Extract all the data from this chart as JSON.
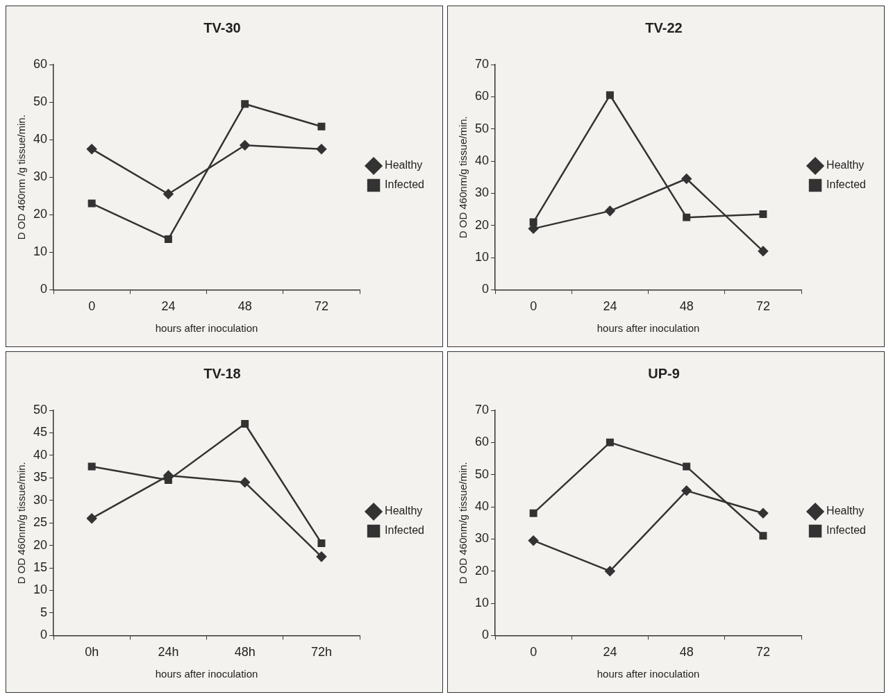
{
  "chart_data": [
    {
      "type": "line",
      "title": "TV-30",
      "xlabel": "hours after inoculation",
      "ylabel": "D OD 460nm /g tissue/min.",
      "categories": [
        "0",
        "24",
        "48",
        "72"
      ],
      "ylim": [
        0,
        60
      ],
      "yticks": [
        0,
        10,
        20,
        30,
        40,
        50,
        60
      ],
      "grid": false,
      "legend": "right",
      "series": [
        {
          "name": "Healthy",
          "color": "#333333",
          "marker": "diamond",
          "values": [
            37.5,
            25.5,
            38.5,
            37.5
          ]
        },
        {
          "name": "Infected",
          "color": "#333333",
          "marker": "square",
          "values": [
            23,
            13.5,
            49.5,
            43.5
          ]
        }
      ]
    },
    {
      "type": "line",
      "title": "TV-22",
      "xlabel": "hours after inoculation",
      "ylabel": "D OD 460nm/g tissue/min.",
      "categories": [
        "0",
        "24",
        "48",
        "72"
      ],
      "ylim": [
        0,
        70
      ],
      "yticks": [
        0,
        10,
        20,
        30,
        40,
        50,
        60,
        70
      ],
      "grid": false,
      "legend": "right",
      "series": [
        {
          "name": "Healthy",
          "color": "#333333",
          "marker": "diamond",
          "values": [
            19,
            24.5,
            34.5,
            12
          ]
        },
        {
          "name": "Infected",
          "color": "#333333",
          "marker": "square",
          "values": [
            21,
            60.5,
            22.5,
            23.5
          ]
        }
      ]
    },
    {
      "type": "line",
      "title": "TV-18",
      "xlabel": "hours after inoculation",
      "ylabel": "D OD 460nm/g tissue/min.",
      "categories": [
        "0h",
        "24h",
        "48h",
        "72h"
      ],
      "ylim": [
        0,
        50
      ],
      "yticks": [
        0,
        5,
        10,
        15,
        20,
        25,
        30,
        35,
        40,
        45,
        50
      ],
      "grid": false,
      "legend": "right",
      "series": [
        {
          "name": "Healthy",
          "color": "#333333",
          "marker": "diamond",
          "values": [
            26,
            35.5,
            34,
            17.5
          ]
        },
        {
          "name": "Infected",
          "color": "#333333",
          "marker": "square",
          "values": [
            37.5,
            34.5,
            47,
            20.5
          ]
        }
      ]
    },
    {
      "type": "line",
      "title": "UP-9",
      "xlabel": "hours after inoculation",
      "ylabel": "D OD 460nm/g tissue/min.",
      "categories": [
        "0",
        "24",
        "48",
        "72"
      ],
      "ylim": [
        0,
        70
      ],
      "yticks": [
        0,
        10,
        20,
        30,
        40,
        50,
        60,
        70
      ],
      "grid": false,
      "legend": "right",
      "series": [
        {
          "name": "Healthy",
          "color": "#333333",
          "marker": "diamond",
          "values": [
            29.5,
            20,
            45,
            38
          ]
        },
        {
          "name": "Infected",
          "color": "#333333",
          "marker": "square",
          "values": [
            38,
            60,
            52.5,
            31
          ]
        }
      ]
    }
  ]
}
